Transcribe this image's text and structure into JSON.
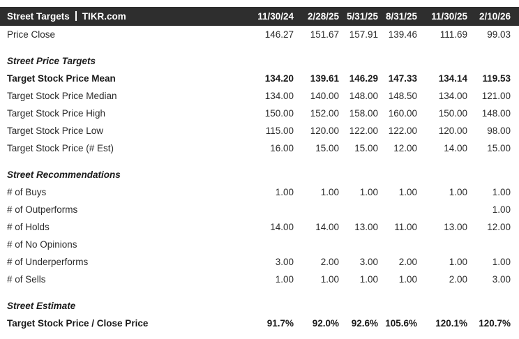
{
  "header": {
    "title_left": "Street Targets",
    "title_right": "TIKR.com",
    "columns": [
      "11/30/24",
      "2/28/25",
      "5/31/25",
      "8/31/25",
      "11/30/25",
      "2/10/26"
    ],
    "bg_color": "#2e2e2e",
    "text_color": "#ffffff"
  },
  "table": {
    "rows": [
      {
        "label": "Price Close",
        "style": "normal",
        "values": [
          "146.27",
          "151.67",
          "157.91",
          "139.46",
          "111.69",
          "99.03"
        ]
      },
      {
        "label": "Street Price Targets",
        "style": "section",
        "values": [
          "",
          "",
          "",
          "",
          "",
          ""
        ]
      },
      {
        "label": "Target Stock Price Mean",
        "style": "bold",
        "values": [
          "134.20",
          "139.61",
          "146.29",
          "147.33",
          "134.14",
          "119.53"
        ]
      },
      {
        "label": "Target Stock Price Median",
        "style": "normal",
        "values": [
          "134.00",
          "140.00",
          "148.00",
          "148.50",
          "134.00",
          "121.00"
        ]
      },
      {
        "label": "Target Stock Price High",
        "style": "normal",
        "values": [
          "150.00",
          "152.00",
          "158.00",
          "160.00",
          "150.00",
          "148.00"
        ]
      },
      {
        "label": "Target Stock Price Low",
        "style": "normal",
        "values": [
          "115.00",
          "120.00",
          "122.00",
          "122.00",
          "120.00",
          "98.00"
        ]
      },
      {
        "label": "Target Stock Price (# Est)",
        "style": "normal",
        "values": [
          "16.00",
          "15.00",
          "15.00",
          "12.00",
          "14.00",
          "15.00"
        ]
      },
      {
        "label": "Street Recommendations",
        "style": "section",
        "values": [
          "",
          "",
          "",
          "",
          "",
          ""
        ]
      },
      {
        "label": "# of Buys",
        "style": "normal",
        "values": [
          "1.00",
          "1.00",
          "1.00",
          "1.00",
          "1.00",
          "1.00"
        ]
      },
      {
        "label": "# of Outperforms",
        "style": "normal",
        "values": [
          "",
          "",
          "",
          "",
          "",
          "1.00"
        ]
      },
      {
        "label": "# of Holds",
        "style": "normal",
        "values": [
          "14.00",
          "14.00",
          "13.00",
          "11.00",
          "13.00",
          "12.00"
        ]
      },
      {
        "label": "# of No Opinions",
        "style": "normal",
        "values": [
          "",
          "",
          "",
          "",
          "",
          ""
        ]
      },
      {
        "label": "# of Underperforms",
        "style": "normal",
        "values": [
          "3.00",
          "2.00",
          "3.00",
          "2.00",
          "1.00",
          "1.00"
        ]
      },
      {
        "label": "# of Sells",
        "style": "normal",
        "values": [
          "1.00",
          "1.00",
          "1.00",
          "1.00",
          "2.00",
          "3.00"
        ]
      },
      {
        "label": "Street Estimate",
        "style": "section",
        "values": [
          "",
          "",
          "",
          "",
          "",
          ""
        ]
      },
      {
        "label": "Target Stock Price / Close Price",
        "style": "bold",
        "values": [
          "91.7%",
          "92.0%",
          "92.6%",
          "105.6%",
          "120.1%",
          "120.7%"
        ]
      }
    ]
  }
}
